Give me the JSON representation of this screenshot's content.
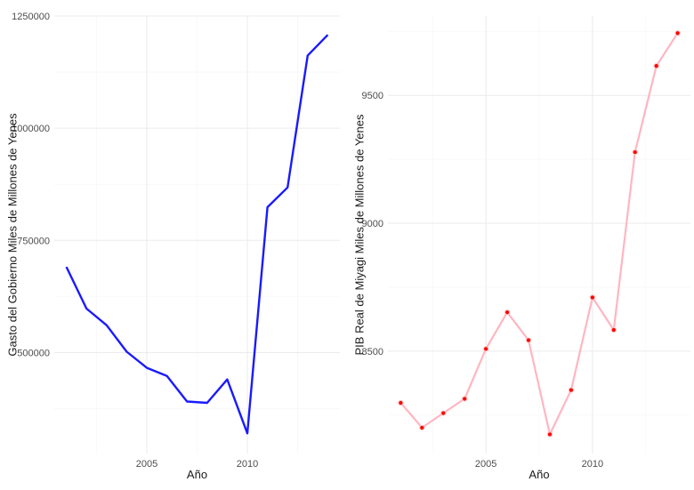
{
  "chart_data": [
    {
      "type": "line",
      "xlabel": "Año",
      "ylabel": "Gasto del Gobierno Miles de Millones de Yenes",
      "x": [
        2001,
        2002,
        2003,
        2004,
        2005,
        2006,
        2007,
        2008,
        2009,
        2010,
        2011,
        2012,
        2013,
        2014
      ],
      "series": [
        {
          "values": [
            691000,
            598000,
            561000,
            502000,
            466000,
            448000,
            391000,
            388000,
            440000,
            320000,
            824000,
            868000,
            1162000,
            1208000
          ],
          "color": "#1a1aff",
          "markers": false
        }
      ],
      "xlim": [
        2000.4,
        2014.6
      ],
      "ylim": [
        275000,
        1250000
      ],
      "xticks": [
        2005,
        2010
      ],
      "yticks": [
        500000,
        750000,
        1000000,
        1250000
      ],
      "xtick_labels": [
        "2005",
        "2010"
      ],
      "ytick_labels": [
        "500000",
        "750000",
        "1000000",
        "1250000"
      ],
      "grid": true
    },
    {
      "type": "line",
      "xlabel": "Año",
      "ylabel": "PIB Real de Miyagi Miles de Millones de Yenes",
      "x": [
        2001,
        2002,
        2003,
        2004,
        2005,
        2006,
        2007,
        2008,
        2009,
        2010,
        2011,
        2012,
        2013,
        2014
      ],
      "series": [
        {
          "values": [
            8298,
            8201,
            8258,
            8314,
            8509,
            8652,
            8543,
            8175,
            8348,
            8710,
            8583,
            9278,
            9615,
            9743
          ],
          "color": "#ffb6c1",
          "marker_color": "#ff0000",
          "markers": true
        }
      ],
      "xlim": [
        2000.4,
        2014.6
      ],
      "ylim": [
        8100,
        9810
      ],
      "xticks": [
        2005,
        2010
      ],
      "yticks": [
        8500,
        9000,
        9500
      ],
      "xtick_labels": [
        "2005",
        "2010"
      ],
      "ytick_labels": [
        "8500",
        "9000",
        "9500"
      ],
      "grid": true
    }
  ]
}
